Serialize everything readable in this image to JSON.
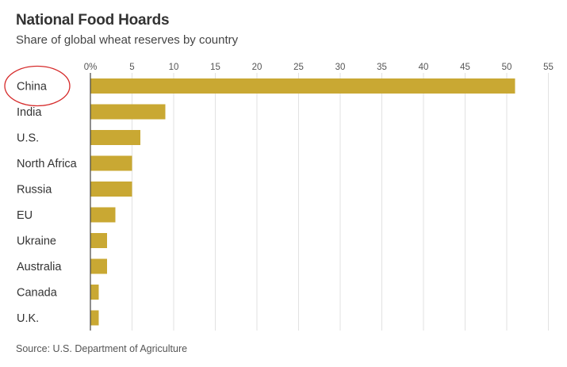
{
  "title": "National Food Hoards",
  "subtitle": "Share of global wheat reserves by country",
  "source": "Source: U.S. Department of Agriculture",
  "colors": {
    "bar": "#c9a833",
    "grid": "#e2e2e2",
    "axis": "#444444",
    "highlight": "#d62b2b"
  },
  "highlight": {
    "category": "China",
    "shape": "ellipse"
  },
  "chart_data": {
    "type": "bar",
    "orientation": "horizontal",
    "title": "National Food Hoards",
    "subtitle": "Share of global wheat reserves by country",
    "xlabel": "",
    "ylabel": "",
    "categories": [
      "China",
      "India",
      "U.S.",
      "North Africa",
      "Russia",
      "EU",
      "Ukraine",
      "Australia",
      "Canada",
      "U.K."
    ],
    "values": [
      51,
      9,
      6,
      5,
      5,
      3,
      2,
      2,
      1,
      1
    ],
    "xlim": [
      0,
      55
    ],
    "x_ticks": [
      0,
      5,
      10,
      15,
      20,
      25,
      30,
      35,
      40,
      45,
      50,
      55
    ],
    "x_tick_labels": [
      "0%",
      "5",
      "10",
      "15",
      "20",
      "25",
      "30",
      "35",
      "40",
      "45",
      "50",
      "55"
    ],
    "grid": true,
    "legend": "none"
  }
}
